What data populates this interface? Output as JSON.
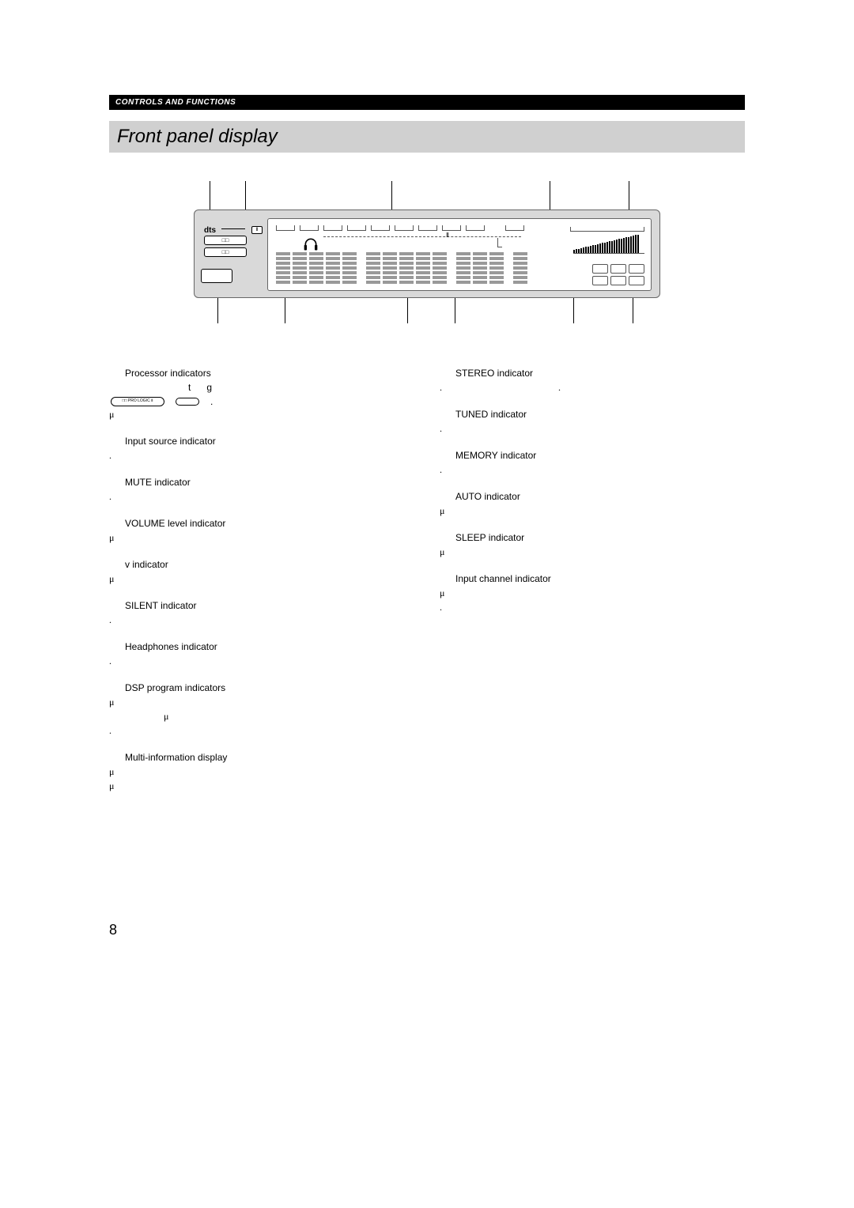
{
  "headerBar": "CONTROLS AND FUNCTIONS",
  "title": "Front panel display",
  "pageNumber": "8",
  "smallDiagram": {
    "label1": "□□ PRO LOGIC Ⅱ",
    "dotAfter": "."
  },
  "left": [
    {
      "title": "Processor indicators",
      "lines": [
        "t      g"
      ],
      "showDiagram": true
    },
    {
      "title": "",
      "lines": [
        "μ"
      ]
    },
    {
      "title": "Input source indicator",
      "lines": [
        "."
      ]
    },
    {
      "title": "MUTE indicator",
      "lines": [
        "."
      ]
    },
    {
      "title": "VOLUME level indicator",
      "lines": [
        "μ"
      ]
    },
    {
      "title": "v        indicator",
      "lines": [
        "",
        "μ"
      ]
    },
    {
      "title": "SILENT indicator",
      "lines": [
        "",
        "."
      ]
    },
    {
      "title": "Headphones indicator",
      "lines": [
        "."
      ]
    },
    {
      "title": "DSP program indicators",
      "lines": [
        "μ",
        "                       μ",
        "."
      ]
    },
    {
      "title": "Multi-information display",
      "lines": [
        "μ",
        "μ"
      ]
    }
  ],
  "right": [
    {
      "title": "STEREO indicator",
      "lines": [
        "",
        ".                                                 ."
      ]
    },
    {
      "title": "TUNED indicator",
      "lines": [
        "."
      ]
    },
    {
      "title": "MEMORY indicator",
      "lines": [
        "."
      ]
    },
    {
      "title": "AUTO indicator",
      "lines": [
        "μ"
      ]
    },
    {
      "title": "SLEEP indicator",
      "lines": [
        "μ"
      ]
    },
    {
      "title": "Input channel indicator",
      "lines": [
        "μ",
        "."
      ]
    }
  ],
  "diagram": {
    "thermoII": "Ⅱ",
    "vbb": "Ⅱ",
    "topCallouts": [
      20,
      65,
      250,
      450,
      550
    ],
    "bottomCallouts": [
      30,
      115,
      270,
      330,
      480,
      555
    ],
    "topBrackets": [
      0,
      30,
      60,
      90,
      120,
      150,
      180,
      210,
      240,
      290
    ],
    "segGroups": [
      4,
      4,
      4,
      4,
      4,
      4,
      4,
      4,
      4,
      4,
      4,
      4,
      4,
      4
    ],
    "volBars": 28
  }
}
